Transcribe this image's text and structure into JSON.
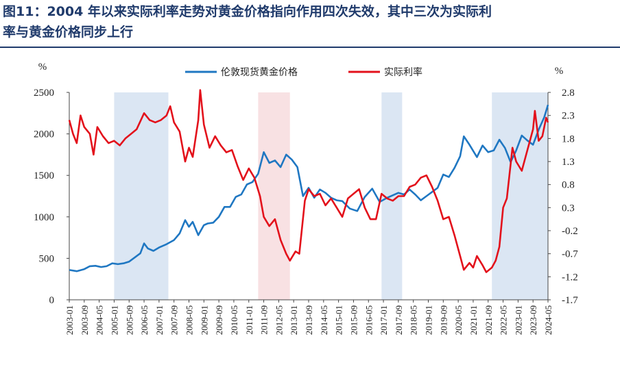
{
  "title": {
    "line1": "图11：2004 年以来实际利率走势对黄金价格指向作用四次失效，其中三次为实际利",
    "line2": "率与黄金价格同步上行"
  },
  "colors": {
    "gold": "#1f77c2",
    "rate": "#e3111b",
    "shade_blue": "#dbe6f3",
    "shade_red": "#f8e1e3"
  },
  "chart_data": {
    "type": "line",
    "y_left": {
      "unit": "%",
      "min": 0,
      "max": 2500,
      "ticks": [
        "2500",
        "2000",
        "1500",
        "1000",
        "500",
        "0"
      ]
    },
    "y_right": {
      "unit": "%",
      "min": -1.7,
      "max": 2.8,
      "ticks": [
        "2.8",
        "2.3",
        "1.8",
        "1.3",
        "0.8",
        "0.3",
        "-0.2",
        "-0.7",
        "-1.2",
        "-1.7"
      ]
    },
    "x_ticks": [
      "2003-01",
      "2003-09",
      "2004-05",
      "2005-01",
      "2005-09",
      "2006-05",
      "2007-01",
      "2007-09",
      "2008-05",
      "2009-01",
      "2009-09",
      "2010-05",
      "2011-01",
      "2011-09",
      "2012-05",
      "2013-01",
      "2013-09",
      "2014-05",
      "2015-01",
      "2015-09",
      "2016-05",
      "2017-01",
      "2017-09",
      "2018-05",
      "2019-01",
      "2019-09",
      "2020-05",
      "2021-01",
      "2021-09",
      "2022-05",
      "2023-01",
      "2023-09",
      "2024-05"
    ],
    "shaded_periods": [
      {
        "start": "2005-01",
        "end": "2007-06",
        "color": "blue"
      },
      {
        "start": "2011-06",
        "end": "2012-11",
        "color": "red"
      },
      {
        "start": "2016-12",
        "end": "2017-11",
        "color": "blue"
      },
      {
        "start": "2021-11",
        "end": "2024-05",
        "color": "blue"
      }
    ],
    "series": [
      {
        "name": "伦敦现货黄金价格",
        "axis": "left",
        "points": [
          [
            "2003-01",
            360
          ],
          [
            "2003-05",
            345
          ],
          [
            "2003-09",
            370
          ],
          [
            "2003-12",
            405
          ],
          [
            "2004-03",
            410
          ],
          [
            "2004-06",
            395
          ],
          [
            "2004-09",
            405
          ],
          [
            "2004-12",
            440
          ],
          [
            "2005-03",
            430
          ],
          [
            "2005-06",
            440
          ],
          [
            "2005-09",
            460
          ],
          [
            "2005-12",
            510
          ],
          [
            "2006-03",
            560
          ],
          [
            "2006-05",
            680
          ],
          [
            "2006-07",
            620
          ],
          [
            "2006-10",
            590
          ],
          [
            "2007-01",
            630
          ],
          [
            "2007-05",
            670
          ],
          [
            "2007-09",
            720
          ],
          [
            "2007-12",
            800
          ],
          [
            "2008-03",
            960
          ],
          [
            "2008-05",
            880
          ],
          [
            "2008-07",
            940
          ],
          [
            "2008-10",
            780
          ],
          [
            "2009-01",
            900
          ],
          [
            "2009-03",
            920
          ],
          [
            "2009-06",
            930
          ],
          [
            "2009-09",
            1000
          ],
          [
            "2009-12",
            1120
          ],
          [
            "2010-03",
            1120
          ],
          [
            "2010-06",
            1240
          ],
          [
            "2010-09",
            1270
          ],
          [
            "2010-12",
            1390
          ],
          [
            "2011-03",
            1420
          ],
          [
            "2011-06",
            1520
          ],
          [
            "2011-09",
            1780
          ],
          [
            "2011-12",
            1650
          ],
          [
            "2012-03",
            1680
          ],
          [
            "2012-06",
            1600
          ],
          [
            "2012-09",
            1750
          ],
          [
            "2012-12",
            1690
          ],
          [
            "2013-03",
            1600
          ],
          [
            "2013-06",
            1250
          ],
          [
            "2013-09",
            1350
          ],
          [
            "2013-12",
            1230
          ],
          [
            "2014-03",
            1330
          ],
          [
            "2014-06",
            1290
          ],
          [
            "2014-09",
            1230
          ],
          [
            "2014-12",
            1200
          ],
          [
            "2015-03",
            1190
          ],
          [
            "2015-07",
            1100
          ],
          [
            "2015-11",
            1070
          ],
          [
            "2016-03",
            1240
          ],
          [
            "2016-07",
            1340
          ],
          [
            "2016-11",
            1180
          ],
          [
            "2017-03",
            1230
          ],
          [
            "2017-06",
            1260
          ],
          [
            "2017-09",
            1290
          ],
          [
            "2017-12",
            1270
          ],
          [
            "2018-03",
            1330
          ],
          [
            "2018-06",
            1270
          ],
          [
            "2018-09",
            1200
          ],
          [
            "2018-12",
            1250
          ],
          [
            "2019-03",
            1300
          ],
          [
            "2019-06",
            1350
          ],
          [
            "2019-09",
            1510
          ],
          [
            "2019-12",
            1480
          ],
          [
            "2020-03",
            1590
          ],
          [
            "2020-06",
            1730
          ],
          [
            "2020-08",
            1970
          ],
          [
            "2020-11",
            1870
          ],
          [
            "2021-03",
            1720
          ],
          [
            "2021-06",
            1860
          ],
          [
            "2021-09",
            1780
          ],
          [
            "2021-12",
            1800
          ],
          [
            "2022-03",
            1930
          ],
          [
            "2022-06",
            1830
          ],
          [
            "2022-09",
            1660
          ],
          [
            "2022-12",
            1800
          ],
          [
            "2023-03",
            1980
          ],
          [
            "2023-06",
            1920
          ],
          [
            "2023-09",
            1870
          ],
          [
            "2023-12",
            2050
          ],
          [
            "2024-03",
            2200
          ],
          [
            "2024-05",
            2350
          ]
        ]
      },
      {
        "name": "实际利率",
        "axis": "right",
        "points": [
          [
            "2003-01",
            2.2
          ],
          [
            "2003-03",
            1.9
          ],
          [
            "2003-05",
            1.7
          ],
          [
            "2003-07",
            2.3
          ],
          [
            "2003-09",
            2.05
          ],
          [
            "2003-12",
            1.9
          ],
          [
            "2004-02",
            1.45
          ],
          [
            "2004-04",
            2.05
          ],
          [
            "2004-07",
            1.85
          ],
          [
            "2004-10",
            1.7
          ],
          [
            "2005-01",
            1.75
          ],
          [
            "2005-04",
            1.65
          ],
          [
            "2005-07",
            1.8
          ],
          [
            "2005-10",
            1.9
          ],
          [
            "2006-01",
            2.0
          ],
          [
            "2006-05",
            2.35
          ],
          [
            "2006-08",
            2.2
          ],
          [
            "2006-11",
            2.15
          ],
          [
            "2007-02",
            2.2
          ],
          [
            "2007-05",
            2.3
          ],
          [
            "2007-07",
            2.5
          ],
          [
            "2007-09",
            2.15
          ],
          [
            "2007-12",
            1.95
          ],
          [
            "2008-03",
            1.3
          ],
          [
            "2008-05",
            1.6
          ],
          [
            "2008-07",
            1.4
          ],
          [
            "2008-10",
            2.2
          ],
          [
            "2008-11",
            2.85
          ],
          [
            "2009-01",
            2.1
          ],
          [
            "2009-04",
            1.6
          ],
          [
            "2009-07",
            1.85
          ],
          [
            "2009-10",
            1.65
          ],
          [
            "2010-01",
            1.5
          ],
          [
            "2010-04",
            1.55
          ],
          [
            "2010-07",
            1.2
          ],
          [
            "2010-10",
            0.9
          ],
          [
            "2011-01",
            1.15
          ],
          [
            "2011-04",
            0.95
          ],
          [
            "2011-07",
            0.55
          ],
          [
            "2011-09",
            0.1
          ],
          [
            "2011-12",
            -0.1
          ],
          [
            "2012-03",
            0.05
          ],
          [
            "2012-06",
            -0.4
          ],
          [
            "2012-09",
            -0.7
          ],
          [
            "2012-11",
            -0.85
          ],
          [
            "2013-02",
            -0.65
          ],
          [
            "2013-04",
            -0.7
          ],
          [
            "2013-07",
            0.45
          ],
          [
            "2013-09",
            0.7
          ],
          [
            "2013-12",
            0.55
          ],
          [
            "2014-03",
            0.6
          ],
          [
            "2014-06",
            0.35
          ],
          [
            "2014-09",
            0.5
          ],
          [
            "2014-12",
            0.3
          ],
          [
            "2015-03",
            0.1
          ],
          [
            "2015-06",
            0.5
          ],
          [
            "2015-09",
            0.6
          ],
          [
            "2015-12",
            0.7
          ],
          [
            "2016-03",
            0.3
          ],
          [
            "2016-06",
            0.05
          ],
          [
            "2016-09",
            0.05
          ],
          [
            "2016-12",
            0.6
          ],
          [
            "2017-03",
            0.5
          ],
          [
            "2017-06",
            0.45
          ],
          [
            "2017-09",
            0.55
          ],
          [
            "2017-12",
            0.55
          ],
          [
            "2018-03",
            0.75
          ],
          [
            "2018-06",
            0.8
          ],
          [
            "2018-09",
            0.95
          ],
          [
            "2018-12",
            1.0
          ],
          [
            "2019-03",
            0.75
          ],
          [
            "2019-06",
            0.45
          ],
          [
            "2019-09",
            0.05
          ],
          [
            "2019-12",
            0.1
          ],
          [
            "2020-03",
            -0.3
          ],
          [
            "2020-06",
            -0.75
          ],
          [
            "2020-08",
            -1.05
          ],
          [
            "2020-11",
            -0.9
          ],
          [
            "2021-01",
            -1.0
          ],
          [
            "2021-03",
            -0.75
          ],
          [
            "2021-06",
            -0.95
          ],
          [
            "2021-08",
            -1.1
          ],
          [
            "2021-11",
            -1.0
          ],
          [
            "2022-01",
            -0.85
          ],
          [
            "2022-03",
            -0.55
          ],
          [
            "2022-05",
            0.3
          ],
          [
            "2022-07",
            0.5
          ],
          [
            "2022-10",
            1.6
          ],
          [
            "2022-12",
            1.3
          ],
          [
            "2023-03",
            1.1
          ],
          [
            "2023-06",
            1.55
          ],
          [
            "2023-09",
            2.0
          ],
          [
            "2023-10",
            2.4
          ],
          [
            "2023-12",
            1.75
          ],
          [
            "2024-02",
            1.85
          ],
          [
            "2024-04",
            2.25
          ],
          [
            "2024-05",
            2.15
          ]
        ]
      }
    ]
  }
}
